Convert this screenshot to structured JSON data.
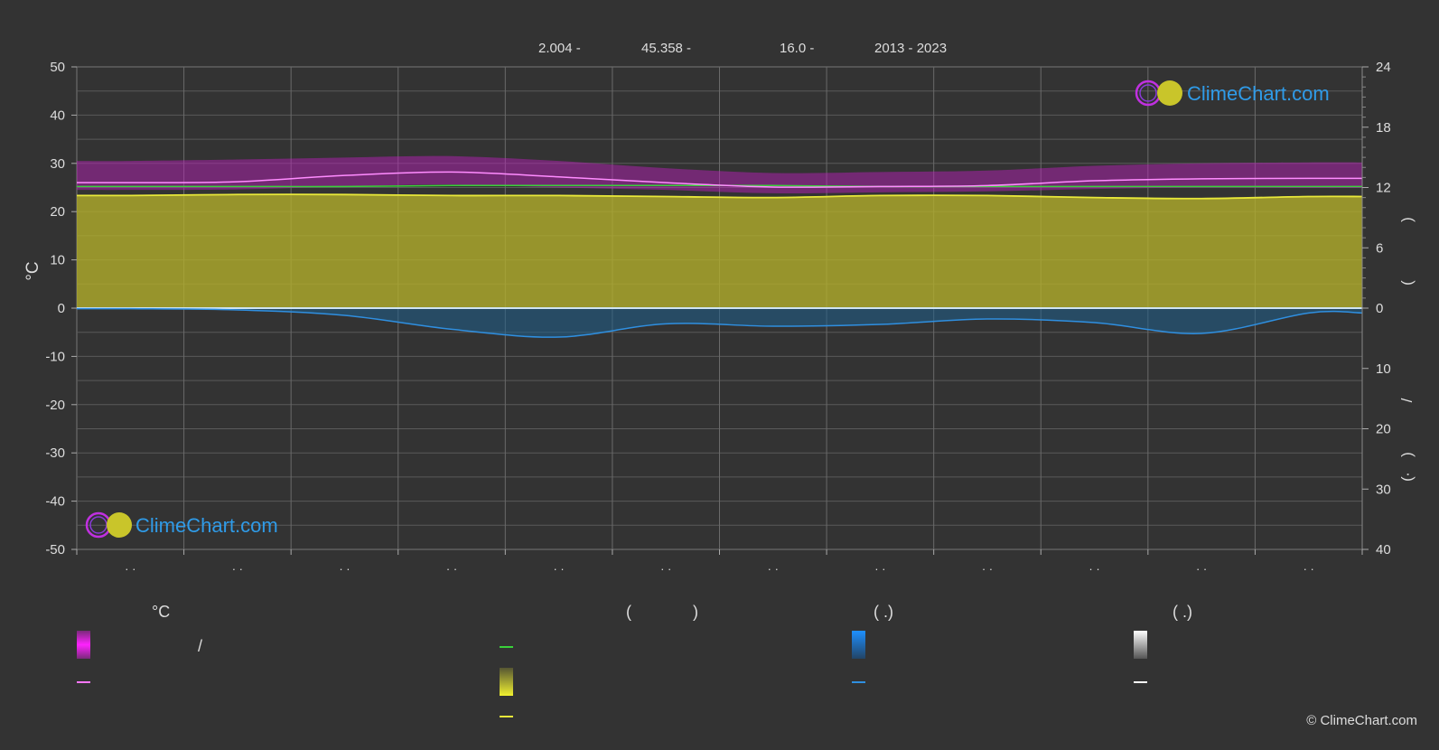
{
  "header": {
    "latitude": "2.004 -",
    "longitude": "45.358 -",
    "elevation": "16.0 -",
    "years": "2013 - 2023"
  },
  "watermark": {
    "top_logo_text": "ClimeChart.com",
    "bottom_logo_text": "ClimeChart.com"
  },
  "copyright": "© ClimeChart.com",
  "colors": {
    "background": "#333333",
    "temp_band": "#d617d6",
    "temp_line": "#ff77ff",
    "daylight_line": "#39d13a",
    "sunshine_fill": "#b8b52b",
    "sunshine_line": "#e8e83a",
    "rain": "#1e7ec8",
    "rain_line": "#2f8fe0",
    "snow": "#ffffff",
    "brand_blue": "#2f9be8"
  },
  "legend": {
    "col1": {
      "header": "°C",
      "sep": "/"
    },
    "col2": {
      "header_open": "(",
      "header_close": ")"
    },
    "col3": {
      "header": "( .)"
    },
    "col4": {
      "header": "( .)"
    }
  },
  "right_axis_title_chars": [
    ")",
    "(",
    "/",
    ")",
    "·",
    "("
  ],
  "chart_data": {
    "type": "area",
    "title": "",
    "ylabel_left": "°C",
    "ylim_left": [
      -50,
      50
    ],
    "left_ticks": [
      50,
      40,
      30,
      20,
      10,
      0,
      -10,
      -20,
      -30,
      -40,
      -50
    ],
    "ylim_right_sunshine_hours": [
      0,
      24
    ],
    "right_ticks_top": [
      24,
      18,
      12,
      6,
      0
    ],
    "ylim_right_precip_mm": [
      0,
      40
    ],
    "right_ticks_bottom": [
      10,
      20,
      30,
      40
    ],
    "months": 12,
    "month_tick_labels": [
      "· ·",
      "· ·",
      "· ·",
      "· ·",
      "· ·",
      "· ·",
      "· ·",
      "· ·",
      "· ·",
      "· ·",
      "· ·",
      "· ·"
    ],
    "grid": true,
    "series": [
      {
        "key": "temp_mean",
        "values": [
          26.0,
          26.2,
          27.5,
          28.2,
          27.2,
          26.0,
          25.1,
          25.2,
          25.4,
          26.4,
          26.8,
          26.9
        ]
      },
      {
        "key": "temp_band_top",
        "values": [
          30.5,
          30.8,
          31.2,
          31.5,
          30.5,
          29.0,
          28.0,
          28.2,
          28.5,
          29.5,
          30.0,
          30.2
        ]
      },
      {
        "key": "temp_band_bottom",
        "values": [
          24.5,
          24.6,
          25.2,
          25.6,
          25.0,
          24.5,
          23.8,
          24.0,
          24.2,
          24.7,
          25.0,
          24.9
        ]
      },
      {
        "key": "daylight_hours",
        "values": [
          12.1,
          12.1,
          12.1,
          12.2,
          12.2,
          12.2,
          12.2,
          12.1,
          12.1,
          12.1,
          12.1,
          12.1
        ]
      },
      {
        "key": "sunshine_hours",
        "values": [
          11.2,
          11.3,
          11.3,
          11.2,
          11.2,
          11.1,
          11.0,
          11.2,
          11.2,
          11.0,
          10.9,
          11.1
        ]
      },
      {
        "key": "rain_mm",
        "values": [
          0.1,
          0.3,
          1.2,
          3.5,
          4.8,
          2.6,
          3.0,
          2.7,
          1.8,
          2.4,
          4.2,
          0.8
        ]
      }
    ]
  }
}
